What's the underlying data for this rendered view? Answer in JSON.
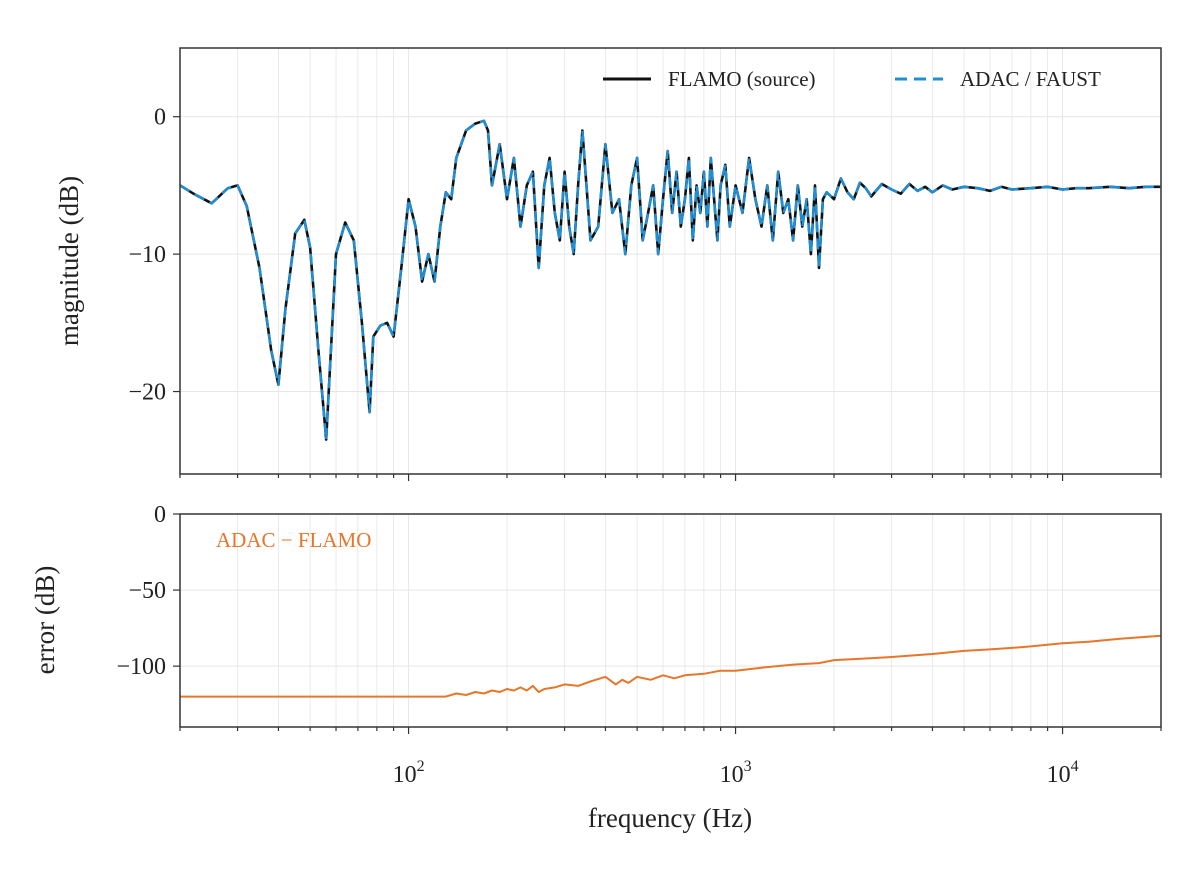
{
  "colors": {
    "source": "#111111",
    "adac": "#1f8fd6",
    "error": "#e8762a",
    "grid": "#e6e6e6",
    "frame": "#333333"
  },
  "chart_data": [
    {
      "type": "line",
      "panel": "top",
      "xscale": "log",
      "xlim": [
        20,
        20000
      ],
      "ylim": [
        -26,
        5
      ],
      "xlabel": "",
      "ylabel": "magnitude (dB)",
      "yticks": [
        0,
        -10,
        -20
      ],
      "ytick_labels": [
        "0",
        "−10",
        "−20"
      ],
      "grid": true,
      "legend": "top-right",
      "legend_items": [
        {
          "label": "FLAMO (source)",
          "style": "solid",
          "color": "#111111"
        },
        {
          "label": "ADAC / FAUST",
          "style": "dashed",
          "color": "#1f8fd6"
        }
      ],
      "series": [
        {
          "name": "FLAMO (source)",
          "x": [
            20,
            22,
            25,
            28,
            30,
            32,
            35,
            38,
            40,
            42,
            45,
            48,
            50,
            53,
            56,
            60,
            64,
            68,
            72,
            76,
            78,
            82,
            86,
            90,
            95,
            100,
            105,
            110,
            115,
            120,
            125,
            130,
            135,
            140,
            150,
            160,
            170,
            175,
            180,
            190,
            200,
            210,
            220,
            230,
            240,
            250,
            260,
            270,
            280,
            290,
            300,
            310,
            320,
            330,
            340,
            360,
            380,
            400,
            420,
            440,
            460,
            480,
            500,
            520,
            540,
            560,
            580,
            600,
            620,
            640,
            660,
            680,
            700,
            720,
            740,
            760,
            780,
            800,
            820,
            840,
            860,
            880,
            900,
            930,
            960,
            1000,
            1050,
            1100,
            1150,
            1200,
            1250,
            1300,
            1350,
            1400,
            1450,
            1500,
            1550,
            1600,
            1650,
            1700,
            1750,
            1800,
            1850,
            1900,
            2000,
            2100,
            2200,
            2300,
            2400,
            2500,
            2600,
            2800,
            3000,
            3200,
            3400,
            3600,
            3800,
            4000,
            4300,
            4600,
            5000,
            5500,
            6000,
            6500,
            7000,
            8000,
            9000,
            10000,
            11000,
            12000,
            14000,
            16000,
            18000,
            20000
          ],
          "y": [
            -5,
            -5.6,
            -6.3,
            -5.2,
            -5,
            -6.5,
            -11,
            -17,
            -19.5,
            -14,
            -8.5,
            -7.5,
            -9.5,
            -17,
            -23.5,
            -10,
            -7.7,
            -9,
            -15,
            -21.5,
            -16,
            -15.2,
            -15,
            -16,
            -11,
            -6,
            -8,
            -12,
            -10,
            -12,
            -8,
            -5.5,
            -6,
            -3,
            -1,
            -0.5,
            -0.3,
            -1,
            -5,
            -2,
            -6,
            -3,
            -8,
            -5,
            -4,
            -11,
            -5,
            -3,
            -7,
            -9,
            -4,
            -8,
            -10,
            -5,
            -1,
            -9,
            -8,
            -2,
            -7,
            -6,
            -10,
            -5,
            -3,
            -9,
            -7,
            -5,
            -10,
            -6,
            -2.5,
            -7,
            -4,
            -8,
            -6,
            -3,
            -9,
            -5,
            -7,
            -4,
            -8,
            -3,
            -6,
            -9,
            -5,
            -3.5,
            -8,
            -5,
            -7,
            -3,
            -6,
            -8,
            -5,
            -9,
            -4,
            -7,
            -6,
            -9,
            -5,
            -8,
            -6,
            -10,
            -5,
            -11,
            -6,
            -5.5,
            -6,
            -4.5,
            -5.5,
            -6,
            -4.8,
            -5.2,
            -5.8,
            -4.9,
            -5.3,
            -5.6,
            -4.9,
            -5.4,
            -5.1,
            -5.5,
            -5,
            -5.3,
            -5.1,
            -5.2,
            -5.4,
            -5.1,
            -5.3,
            -5.2,
            -5.1,
            -5.3,
            -5.2,
            -5.2,
            -5.1,
            -5.2,
            -5.1,
            -5.1
          ]
        },
        {
          "name": "ADAC / FAUST",
          "same_as": "FLAMO (source)"
        }
      ]
    },
    {
      "type": "line",
      "panel": "bottom",
      "xscale": "log",
      "xlim": [
        20,
        20000
      ],
      "ylim": [
        -140,
        0
      ],
      "xlabel": "frequency (Hz)",
      "ylabel": "error (dB)",
      "yticks": [
        0,
        -50,
        -100
      ],
      "ytick_labels": [
        "0",
        "−50",
        "−100"
      ],
      "xticks": [
        100,
        1000,
        10000
      ],
      "xtick_base": "10",
      "xtick_exponents": [
        "2",
        "3",
        "4"
      ],
      "grid": true,
      "annotation": "ADAC − FLAMO",
      "series": [
        {
          "name": "ADAC − FLAMO",
          "x": [
            20,
            50,
            100,
            130,
            140,
            150,
            160,
            170,
            180,
            190,
            200,
            210,
            220,
            230,
            240,
            250,
            260,
            280,
            300,
            330,
            360,
            400,
            430,
            450,
            470,
            500,
            550,
            600,
            650,
            700,
            800,
            900,
            1000,
            1200,
            1500,
            1800,
            2000,
            2500,
            3000,
            4000,
            5000,
            6000,
            7000,
            8000,
            10000,
            12000,
            15000,
            20000
          ],
          "y": [
            -120,
            -120,
            -120,
            -120,
            -118,
            -119,
            -117,
            -118,
            -116,
            -117,
            -115,
            -116,
            -114,
            -116,
            -113,
            -117,
            -115,
            -114,
            -112,
            -113,
            -110,
            -107,
            -112,
            -109,
            -111,
            -107,
            -109,
            -106,
            -108,
            -106,
            -105,
            -103,
            -103,
            -101,
            -99,
            -98,
            -96,
            -95,
            -94,
            -92,
            -90,
            -89,
            -88,
            -87,
            -85,
            -84,
            -82,
            -80
          ]
        }
      ]
    }
  ]
}
